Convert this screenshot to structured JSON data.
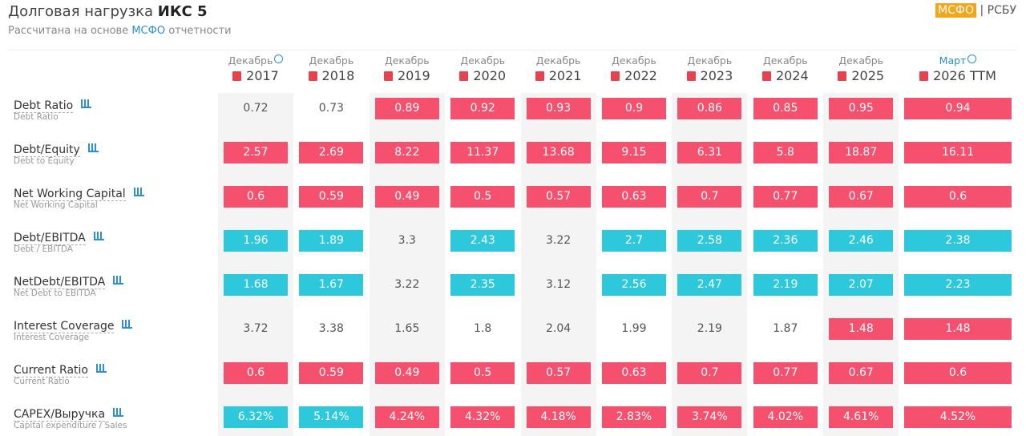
{
  "header": {
    "title": "Долговая нагрузка",
    "company": "ИКС 5",
    "subtitle_before": "Рассчитана на основе",
    "subtitle_link": "МСФО",
    "subtitle_after": "отчетности",
    "toggle": {
      "active": "МСФО",
      "separator": "|",
      "inactive": "РСБУ"
    }
  },
  "table": {
    "columns": [
      {
        "period": "Декабрь",
        "year": "2017",
        "info": true
      },
      {
        "period": "Декабрь",
        "year": "2018",
        "info": false
      },
      {
        "period": "Декабрь",
        "year": "2019",
        "info": false
      },
      {
        "period": "Декабрь",
        "year": "2020",
        "info": false
      },
      {
        "period": "Декабрь",
        "year": "2021",
        "info": false
      },
      {
        "period": "Декабрь",
        "year": "2022",
        "info": false
      },
      {
        "period": "Декабрь",
        "year": "2023",
        "info": false
      },
      {
        "period": "Декабрь",
        "year": "2024",
        "info": false
      },
      {
        "period": "Декабрь",
        "year": "2025",
        "info": false
      },
      {
        "period": "Март",
        "year": "2026 TTM",
        "info": true
      }
    ],
    "rows": [
      {
        "name": "Debt Ratio",
        "description": "Debt Ratio",
        "cells": [
          {
            "text": "0.72",
            "color": "none"
          },
          {
            "text": "0.73",
            "color": "none"
          },
          {
            "text": "0.89",
            "color": "red"
          },
          {
            "text": "0.92",
            "color": "red"
          },
          {
            "text": "0.93",
            "color": "red"
          },
          {
            "text": "0.9",
            "color": "red"
          },
          {
            "text": "0.86",
            "color": "red"
          },
          {
            "text": "0.85",
            "color": "red"
          },
          {
            "text": "0.95",
            "color": "red"
          },
          {
            "text": "0.94",
            "color": "red"
          }
        ]
      },
      {
        "name": "Debt/Equity",
        "description": "Debt to Equity",
        "cells": [
          {
            "text": "2.57",
            "color": "red"
          },
          {
            "text": "2.69",
            "color": "red"
          },
          {
            "text": "8.22",
            "color": "red"
          },
          {
            "text": "11.37",
            "color": "red"
          },
          {
            "text": "13.68",
            "color": "red"
          },
          {
            "text": "9.15",
            "color": "red"
          },
          {
            "text": "6.31",
            "color": "red"
          },
          {
            "text": "5.8",
            "color": "red"
          },
          {
            "text": "18.87",
            "color": "red"
          },
          {
            "text": "16.11",
            "color": "red"
          }
        ]
      },
      {
        "name": "Net Working Capital",
        "description": "Net Working Capital",
        "cells": [
          {
            "text": "0.6",
            "color": "red"
          },
          {
            "text": "0.59",
            "color": "red"
          },
          {
            "text": "0.49",
            "color": "red"
          },
          {
            "text": "0.5",
            "color": "red"
          },
          {
            "text": "0.57",
            "color": "red"
          },
          {
            "text": "0.63",
            "color": "red"
          },
          {
            "text": "0.7",
            "color": "red"
          },
          {
            "text": "0.77",
            "color": "red"
          },
          {
            "text": "0.67",
            "color": "red"
          },
          {
            "text": "0.6",
            "color": "red"
          }
        ]
      },
      {
        "name": "Debt/EBITDA",
        "description": "Debt / EBITDA",
        "cells": [
          {
            "text": "1.96",
            "color": "cyan"
          },
          {
            "text": "1.89",
            "color": "cyan"
          },
          {
            "text": "3.3",
            "color": "none"
          },
          {
            "text": "2.43",
            "color": "cyan"
          },
          {
            "text": "3.22",
            "color": "none"
          },
          {
            "text": "2.7",
            "color": "cyan"
          },
          {
            "text": "2.58",
            "color": "cyan"
          },
          {
            "text": "2.36",
            "color": "cyan"
          },
          {
            "text": "2.46",
            "color": "cyan"
          },
          {
            "text": "2.38",
            "color": "cyan"
          }
        ]
      },
      {
        "name": "NetDebt/EBITDA",
        "description": "Net Debt to EBITDA",
        "cells": [
          {
            "text": "1.68",
            "color": "cyan"
          },
          {
            "text": "1.67",
            "color": "cyan"
          },
          {
            "text": "3.22",
            "color": "none"
          },
          {
            "text": "2.35",
            "color": "cyan"
          },
          {
            "text": "3.12",
            "color": "none"
          },
          {
            "text": "2.56",
            "color": "cyan"
          },
          {
            "text": "2.47",
            "color": "cyan"
          },
          {
            "text": "2.19",
            "color": "cyan"
          },
          {
            "text": "2.07",
            "color": "cyan"
          },
          {
            "text": "2.23",
            "color": "cyan"
          }
        ]
      },
      {
        "name": "Interest Coverage",
        "description": "Interest Coverage",
        "cells": [
          {
            "text": "3.72",
            "color": "none"
          },
          {
            "text": "3.38",
            "color": "none"
          },
          {
            "text": "1.65",
            "color": "none"
          },
          {
            "text": "1.8",
            "color": "none"
          },
          {
            "text": "2.04",
            "color": "none"
          },
          {
            "text": "1.99",
            "color": "none"
          },
          {
            "text": "2.19",
            "color": "none"
          },
          {
            "text": "1.87",
            "color": "none"
          },
          {
            "text": "1.48",
            "color": "red"
          },
          {
            "text": "1.48",
            "color": "red"
          }
        ]
      },
      {
        "name": "Current Ratio",
        "description": "Current Ratio",
        "cells": [
          {
            "text": "0.6",
            "color": "red"
          },
          {
            "text": "0.59",
            "color": "red"
          },
          {
            "text": "0.49",
            "color": "red"
          },
          {
            "text": "0.5",
            "color": "red"
          },
          {
            "text": "0.57",
            "color": "red"
          },
          {
            "text": "0.63",
            "color": "red"
          },
          {
            "text": "0.7",
            "color": "red"
          },
          {
            "text": "0.77",
            "color": "red"
          },
          {
            "text": "0.67",
            "color": "red"
          },
          {
            "text": "0.6",
            "color": "red"
          }
        ]
      },
      {
        "name": "CAPEX/Выручка",
        "description": "Capital expenditure / Sales",
        "cells": [
          {
            "text": "6.32%",
            "color": "cyan"
          },
          {
            "text": "5.14%",
            "color": "cyan"
          },
          {
            "text": "4.24%",
            "color": "red"
          },
          {
            "text": "4.32%",
            "color": "red"
          },
          {
            "text": "4.18%",
            "color": "red"
          },
          {
            "text": "2.83%",
            "color": "red"
          },
          {
            "text": "3.74%",
            "color": "red"
          },
          {
            "text": "4.02%",
            "color": "red"
          },
          {
            "text": "4.61%",
            "color": "red"
          },
          {
            "text": "4.52%",
            "color": "red"
          }
        ]
      }
    ]
  }
}
